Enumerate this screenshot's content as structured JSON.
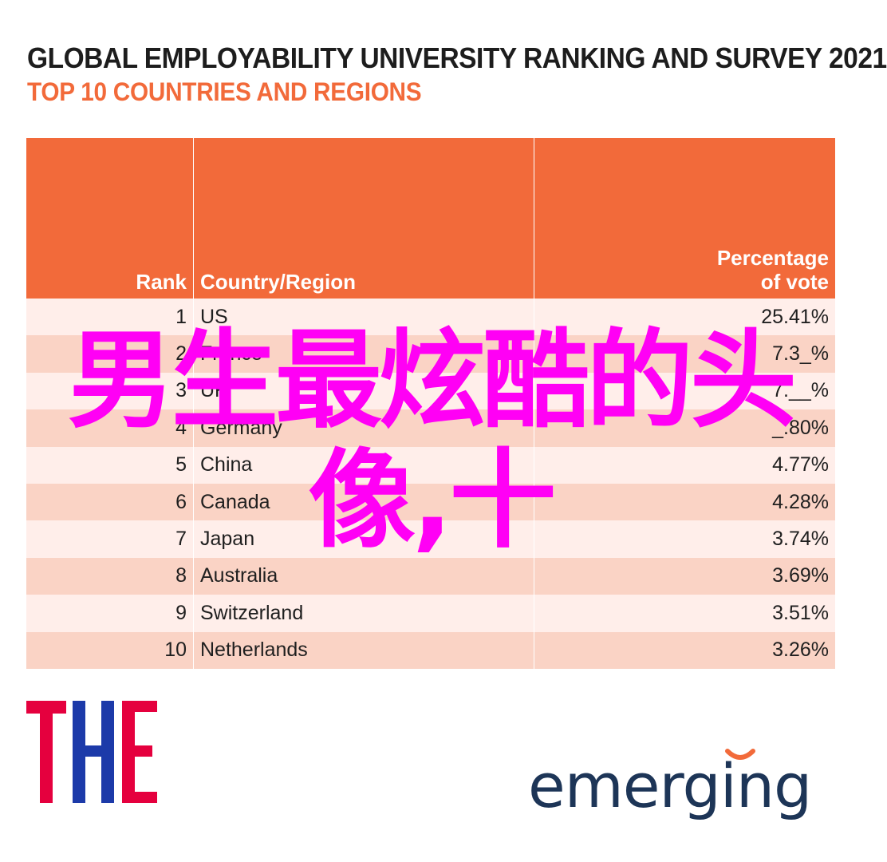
{
  "header": {
    "title": "GLOBAL EMPLOYABILITY UNIVERSITY RANKING AND SURVEY 2021",
    "subtitle": "TOP 10 COUNTRIES AND REGIONS"
  },
  "chart_data": {
    "type": "table",
    "columns": [
      "Rank",
      "Country/Region",
      "Percentage of vote"
    ],
    "rows": [
      {
        "rank": "1",
        "country": "US",
        "pct": "25.41%"
      },
      {
        "rank": "2",
        "country": "France",
        "pct": "7.3_%"
      },
      {
        "rank": "3",
        "country": "UK",
        "pct": "7.__%"
      },
      {
        "rank": "4",
        "country": "Germany",
        "pct": "_.80%"
      },
      {
        "rank": "5",
        "country": "China",
        "pct": "4.77%"
      },
      {
        "rank": "6",
        "country": "Canada",
        "pct": "4.28%"
      },
      {
        "rank": "7",
        "country": "Japan",
        "pct": "3.74%"
      },
      {
        "rank": "8",
        "country": "Australia",
        "pct": "3.69%"
      },
      {
        "rank": "9",
        "country": "Switzerland",
        "pct": "3.51%"
      },
      {
        "rank": "10",
        "country": "Netherlands",
        "pct": "3.26%"
      }
    ]
  },
  "table_headers": {
    "rank": "Rank",
    "country": "Country/Region",
    "pct_line1": "Percentage",
    "pct_line2": "of vote"
  },
  "overlay": {
    "line1": "男生最炫酷的头",
    "line2": "像,十",
    "color": "#ff00f5"
  },
  "logos": {
    "the": "THE",
    "emerging": "emerging"
  },
  "colors": {
    "accent": "#f26a3a",
    "row_light": "#ffeeea",
    "row_dark": "#fad3c5",
    "the_red": "#e5003e",
    "the_blue": "#1c3aa9",
    "emerging_navy": "#1d3557"
  }
}
